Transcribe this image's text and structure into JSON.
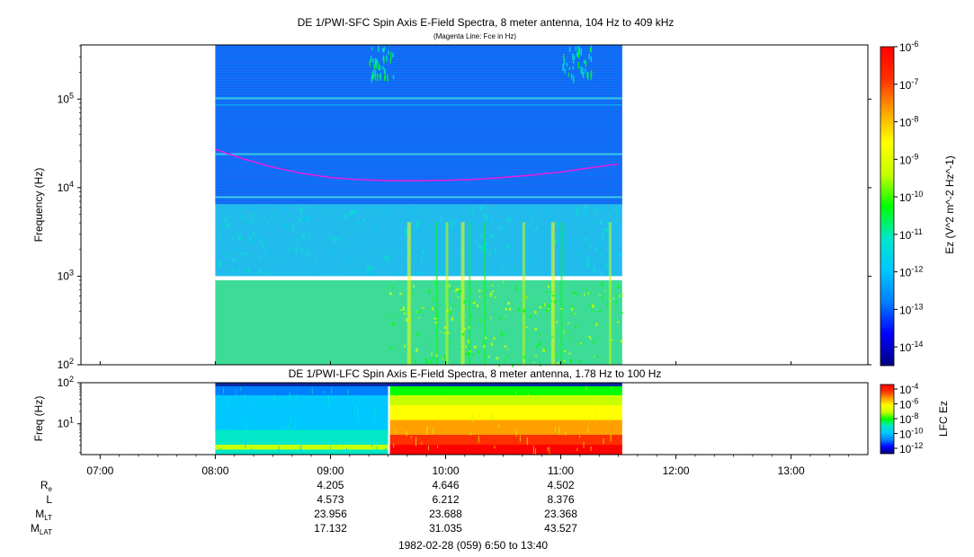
{
  "colors": {
    "scale": [
      "#000080",
      "#0000ff",
      "#0080ff",
      "#00c8ff",
      "#00e8c8",
      "#00ff00",
      "#c8ff00",
      "#ffff00",
      "#ffa000",
      "#ff3000",
      "#ff0000"
    ],
    "fce_line": "#e020e0",
    "data_gap": "#ffffff",
    "background": "#ffffff"
  },
  "chart_data": [
    {
      "type": "heatmap",
      "title": "DE 1/PWI-SFC  Spin Axis E-Field Spectra, 8 meter antenna, 104 Hz to 409 kHz",
      "subtitle": "(Magenta Line: Fce in Hz)",
      "ylabel": "Frequency (Hz)",
      "y_scale": "log",
      "ylim": [
        100,
        409000
      ],
      "y_ticks": [
        {
          "value": 100,
          "label": "10^2"
        },
        {
          "value": 1000,
          "label": "10^3"
        },
        {
          "value": 10000,
          "label": "10^4"
        },
        {
          "value": 100000,
          "label": "10^5"
        }
      ],
      "x_range": [
        "06:50",
        "13:40"
      ],
      "data_range": [
        "08:00",
        "11:32"
      ],
      "colorbar": {
        "label": "Ez (V^2 m^-2 Hz^-1)",
        "scale": "log",
        "range": [
          1e-14,
          1e-06
        ],
        "ticks": [
          "10^-6",
          "10^-7",
          "10^-8",
          "10^-9",
          "10^-10",
          "10^-11",
          "10^-12",
          "10^-13",
          "10^-14"
        ]
      },
      "fce_line": {
        "name": "Fce",
        "x": [
          "08:00",
          "08:15",
          "08:30",
          "08:45",
          "09:00",
          "09:15",
          "09:30",
          "09:45",
          "10:00",
          "10:15",
          "10:30",
          "10:45",
          "11:00",
          "11:15",
          "11:30"
        ],
        "y": [
          27000,
          21000,
          17000,
          14500,
          13000,
          12300,
          12000,
          12000,
          12100,
          12400,
          13000,
          13900,
          15000,
          16700,
          18500
        ]
      },
      "bands": [
        {
          "f_low": 6500,
          "f_high": 409000,
          "level": "10^-13",
          "note": "horizontal stripes"
        },
        {
          "f_low": 1000,
          "f_high": 6500,
          "level": "10^-12"
        },
        {
          "f_low": 100,
          "f_high": 900,
          "level": "10^-10"
        }
      ]
    },
    {
      "type": "heatmap",
      "title": "DE 1/PWI-LFC  Spin Axis E-Field Spectra, 8 meter antenna, 1.78 Hz to 100 Hz",
      "ylabel": "Freq (Hz)",
      "y_scale": "log",
      "ylim": [
        1.78,
        100
      ],
      "y_ticks": [
        {
          "value": 10,
          "label": "10^1"
        },
        {
          "value": 100,
          "label": "10^2"
        }
      ],
      "colorbar": {
        "label": "LFC Ez",
        "scale": "log",
        "range": [
          1e-12,
          0.0001
        ],
        "ticks": [
          "10^-4",
          "10^-6",
          "10^-8",
          "10^-10",
          "10^-12"
        ]
      },
      "x_ticks": [
        "07:00",
        "08:00",
        "09:00",
        "10:00",
        "11:00",
        "12:00",
        "13:00"
      ],
      "regimes": [
        {
          "start": "08:00",
          "end": "09:30",
          "level": "10^-11"
        },
        {
          "start": "09:31",
          "end": "11:32",
          "level": "10^-6"
        }
      ]
    }
  ],
  "ephemeris": {
    "labels": [
      {
        "main": "R",
        "sub": "e"
      },
      {
        "main": "L",
        "sub": ""
      },
      {
        "main": "M",
        "sub": "LT"
      },
      {
        "main": "M",
        "sub": "LAT"
      }
    ],
    "columns": [
      {
        "time": "09:00",
        "values": [
          "4.205",
          "4.573",
          "23.956",
          "17.132"
        ]
      },
      {
        "time": "10:00",
        "values": [
          "4.646",
          "6.212",
          "23.688",
          "31.035"
        ]
      },
      {
        "time": "11:00",
        "values": [
          "4.502",
          "8.376",
          "23.368",
          "43.527"
        ]
      }
    ]
  },
  "footer": "1982-02-28 (059) 6:50 to 13:40"
}
